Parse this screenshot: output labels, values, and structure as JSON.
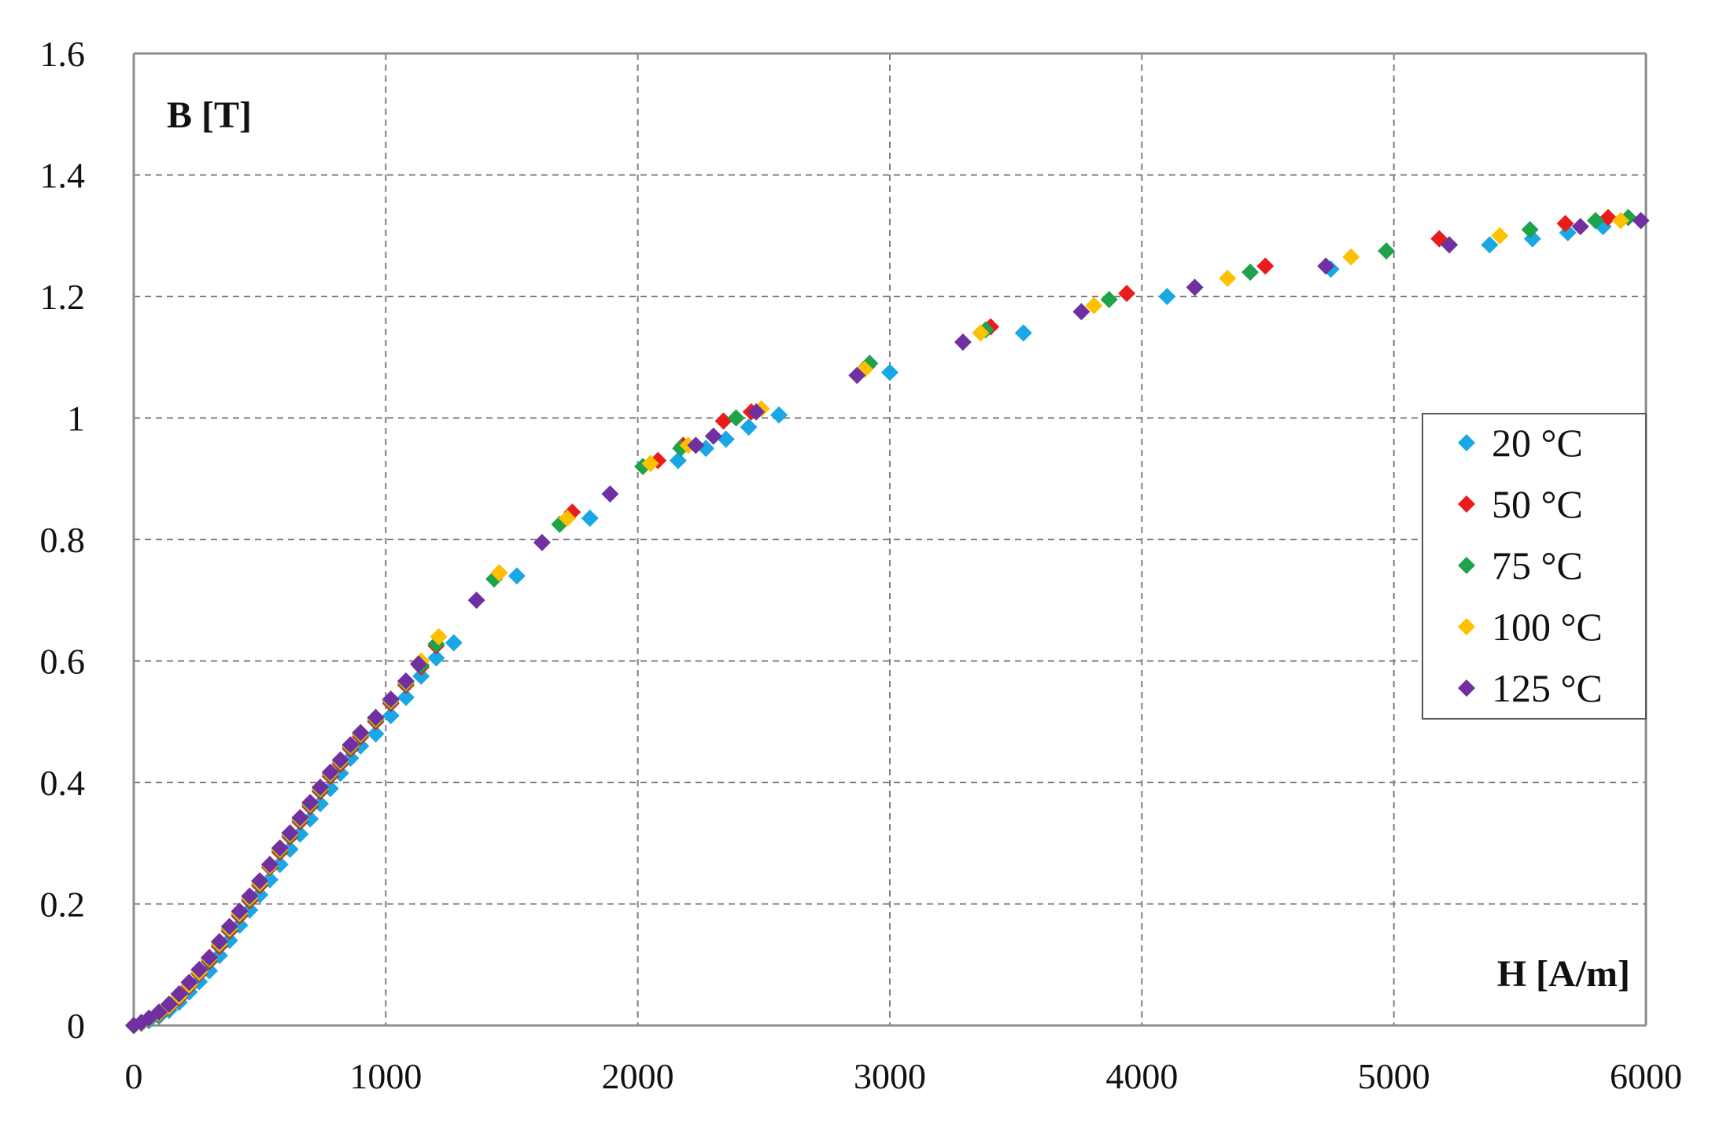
{
  "chart_data": {
    "type": "scatter",
    "xlabel": "H [A/m]",
    "ylabel": "B [T]",
    "xlim": [
      0,
      6000
    ],
    "ylim": [
      0,
      1.6
    ],
    "x_ticks": [
      "0",
      "1000",
      "2000",
      "3000",
      "4000",
      "5000",
      "6000"
    ],
    "y_ticks": [
      "0",
      "0.2",
      "0.4",
      "0.6",
      "0.8",
      "1",
      "1.2",
      "1.4",
      "1.6"
    ],
    "grid": true,
    "legend_position": "right",
    "marker": "diamond",
    "series": [
      {
        "name": "20 °C",
        "color": "#19a7e6",
        "points": [
          [
            0,
            0
          ],
          [
            30,
            0.003
          ],
          [
            60,
            0.008
          ],
          [
            100,
            0.015
          ],
          [
            140,
            0.025
          ],
          [
            180,
            0.038
          ],
          [
            220,
            0.055
          ],
          [
            260,
            0.072
          ],
          [
            300,
            0.09
          ],
          [
            340,
            0.115
          ],
          [
            380,
            0.14
          ],
          [
            420,
            0.165
          ],
          [
            460,
            0.19
          ],
          [
            500,
            0.215
          ],
          [
            540,
            0.24
          ],
          [
            580,
            0.265
          ],
          [
            620,
            0.29
          ],
          [
            660,
            0.315
          ],
          [
            700,
            0.34
          ],
          [
            740,
            0.365
          ],
          [
            780,
            0.39
          ],
          [
            820,
            0.415
          ],
          [
            860,
            0.44
          ],
          [
            900,
            0.46
          ],
          [
            960,
            0.48
          ],
          [
            1020,
            0.51
          ],
          [
            1080,
            0.54
          ],
          [
            1140,
            0.575
          ],
          [
            1200,
            0.605
          ],
          [
            1270,
            0.63
          ],
          [
            1520,
            0.74
          ],
          [
            1810,
            0.835
          ],
          [
            2160,
            0.93
          ],
          [
            2270,
            0.95
          ],
          [
            2350,
            0.965
          ],
          [
            2440,
            0.985
          ],
          [
            2560,
            1.005
          ],
          [
            3000,
            1.075
          ],
          [
            3530,
            1.14
          ],
          [
            4100,
            1.2
          ],
          [
            4750,
            1.245
          ],
          [
            5380,
            1.285
          ],
          [
            5550,
            1.295
          ],
          [
            5690,
            1.305
          ],
          [
            5830,
            1.315
          ]
        ]
      },
      {
        "name": "50 °C",
        "color": "#e81c1c",
        "points": [
          [
            0,
            0
          ],
          [
            30,
            0.004
          ],
          [
            60,
            0.01
          ],
          [
            100,
            0.018
          ],
          [
            140,
            0.03
          ],
          [
            180,
            0.045
          ],
          [
            220,
            0.064
          ],
          [
            260,
            0.085
          ],
          [
            300,
            0.105
          ],
          [
            340,
            0.13
          ],
          [
            380,
            0.155
          ],
          [
            420,
            0.18
          ],
          [
            460,
            0.205
          ],
          [
            500,
            0.23
          ],
          [
            540,
            0.26
          ],
          [
            580,
            0.285
          ],
          [
            620,
            0.31
          ],
          [
            660,
            0.335
          ],
          [
            700,
            0.36
          ],
          [
            740,
            0.385
          ],
          [
            780,
            0.41
          ],
          [
            820,
            0.43
          ],
          [
            860,
            0.455
          ],
          [
            900,
            0.475
          ],
          [
            960,
            0.5
          ],
          [
            1020,
            0.53
          ],
          [
            1080,
            0.56
          ],
          [
            1140,
            0.59
          ],
          [
            1200,
            0.625
          ],
          [
            1450,
            0.745
          ],
          [
            1740,
            0.845
          ],
          [
            2080,
            0.93
          ],
          [
            2180,
            0.955
          ],
          [
            2340,
            0.995
          ],
          [
            2450,
            1.01
          ],
          [
            2910,
            1.085
          ],
          [
            3400,
            1.15
          ],
          [
            3940,
            1.205
          ],
          [
            4490,
            1.25
          ],
          [
            5180,
            1.295
          ],
          [
            5680,
            1.32
          ],
          [
            5850,
            1.33
          ]
        ]
      },
      {
        "name": "75 °C",
        "color": "#1fa34a",
        "points": [
          [
            0,
            0
          ],
          [
            30,
            0.004
          ],
          [
            60,
            0.01
          ],
          [
            100,
            0.019
          ],
          [
            140,
            0.031
          ],
          [
            180,
            0.047
          ],
          [
            220,
            0.066
          ],
          [
            260,
            0.087
          ],
          [
            300,
            0.108
          ],
          [
            340,
            0.133
          ],
          [
            380,
            0.158
          ],
          [
            420,
            0.183
          ],
          [
            460,
            0.208
          ],
          [
            500,
            0.233
          ],
          [
            540,
            0.262
          ],
          [
            580,
            0.288
          ],
          [
            620,
            0.313
          ],
          [
            660,
            0.338
          ],
          [
            700,
            0.363
          ],
          [
            740,
            0.388
          ],
          [
            780,
            0.413
          ],
          [
            820,
            0.433
          ],
          [
            860,
            0.458
          ],
          [
            900,
            0.478
          ],
          [
            960,
            0.503
          ],
          [
            1020,
            0.533
          ],
          [
            1080,
            0.563
          ],
          [
            1140,
            0.593
          ],
          [
            1200,
            0.628
          ],
          [
            1430,
            0.735
          ],
          [
            1690,
            0.825
          ],
          [
            2020,
            0.92
          ],
          [
            2170,
            0.95
          ],
          [
            2390,
            1.0
          ],
          [
            2920,
            1.09
          ],
          [
            3380,
            1.145
          ],
          [
            3870,
            1.195
          ],
          [
            4430,
            1.24
          ],
          [
            4970,
            1.275
          ],
          [
            5540,
            1.31
          ],
          [
            5800,
            1.325
          ],
          [
            5930,
            1.33
          ]
        ]
      },
      {
        "name": "100 °C",
        "color": "#ffc000",
        "points": [
          [
            0,
            0
          ],
          [
            30,
            0.004
          ],
          [
            60,
            0.011
          ],
          [
            100,
            0.02
          ],
          [
            140,
            0.032
          ],
          [
            180,
            0.048
          ],
          [
            220,
            0.067
          ],
          [
            260,
            0.088
          ],
          [
            300,
            0.11
          ],
          [
            340,
            0.135
          ],
          [
            380,
            0.16
          ],
          [
            420,
            0.185
          ],
          [
            460,
            0.21
          ],
          [
            500,
            0.235
          ],
          [
            540,
            0.263
          ],
          [
            580,
            0.29
          ],
          [
            620,
            0.315
          ],
          [
            660,
            0.34
          ],
          [
            700,
            0.365
          ],
          [
            740,
            0.39
          ],
          [
            780,
            0.415
          ],
          [
            820,
            0.435
          ],
          [
            860,
            0.46
          ],
          [
            900,
            0.48
          ],
          [
            960,
            0.505
          ],
          [
            1020,
            0.535
          ],
          [
            1080,
            0.565
          ],
          [
            1140,
            0.6
          ],
          [
            1210,
            0.64
          ],
          [
            1450,
            0.745
          ],
          [
            1720,
            0.835
          ],
          [
            2050,
            0.925
          ],
          [
            2200,
            0.955
          ],
          [
            2490,
            1.015
          ],
          [
            2900,
            1.08
          ],
          [
            3360,
            1.14
          ],
          [
            3810,
            1.185
          ],
          [
            4340,
            1.23
          ],
          [
            4830,
            1.265
          ],
          [
            5420,
            1.3
          ],
          [
            5900,
            1.325
          ]
        ]
      },
      {
        "name": "125 °C",
        "color": "#7030a0",
        "points": [
          [
            0,
            0
          ],
          [
            30,
            0.005
          ],
          [
            60,
            0.012
          ],
          [
            100,
            0.022
          ],
          [
            140,
            0.035
          ],
          [
            180,
            0.052
          ],
          [
            220,
            0.071
          ],
          [
            260,
            0.092
          ],
          [
            300,
            0.112
          ],
          [
            340,
            0.138
          ],
          [
            380,
            0.163
          ],
          [
            420,
            0.188
          ],
          [
            460,
            0.213
          ],
          [
            500,
            0.238
          ],
          [
            540,
            0.265
          ],
          [
            580,
            0.292
          ],
          [
            620,
            0.317
          ],
          [
            660,
            0.342
          ],
          [
            700,
            0.367
          ],
          [
            740,
            0.392
          ],
          [
            780,
            0.417
          ],
          [
            820,
            0.437
          ],
          [
            860,
            0.462
          ],
          [
            900,
            0.482
          ],
          [
            960,
            0.507
          ],
          [
            1020,
            0.537
          ],
          [
            1080,
            0.567
          ],
          [
            1130,
            0.595
          ],
          [
            1360,
            0.7
          ],
          [
            1620,
            0.795
          ],
          [
            1890,
            0.875
          ],
          [
            2230,
            0.955
          ],
          [
            2300,
            0.97
          ],
          [
            2470,
            1.01
          ],
          [
            2870,
            1.07
          ],
          [
            3290,
            1.125
          ],
          [
            3760,
            1.175
          ],
          [
            4210,
            1.215
          ],
          [
            4730,
            1.25
          ],
          [
            5220,
            1.285
          ],
          [
            5740,
            1.315
          ],
          [
            5980,
            1.325
          ]
        ]
      }
    ]
  }
}
